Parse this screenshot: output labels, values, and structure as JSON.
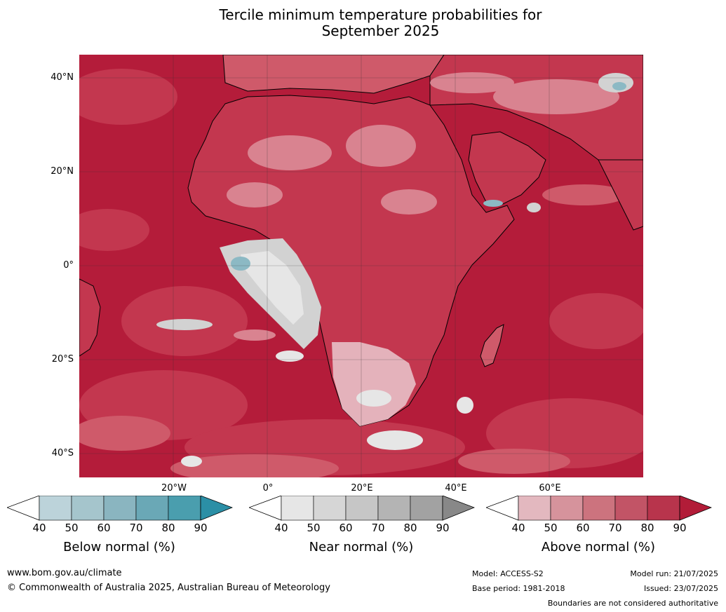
{
  "title": {
    "line1": "Tercile minimum temperature probabilities for",
    "line2": "September 2025"
  },
  "map": {
    "lat_labels": [
      "40°N",
      "20°N",
      "0°",
      "20°S",
      "40°S"
    ],
    "lon_labels": [
      "20°W",
      "0°",
      "20°E",
      "40°E",
      "60°E"
    ],
    "colors": {
      "ocean_high": "#b41c3a",
      "above_80": "#c3374f",
      "above_70": "#cf5a6a",
      "above_60": "#d98390",
      "above_50": "#e4b2bb",
      "near": "#d2d2d2",
      "near_light": "#e6e6e6",
      "below": "#8cb9c4"
    }
  },
  "colorbars": [
    {
      "label": "Below normal (%)",
      "ticks": [
        "40",
        "50",
        "60",
        "70",
        "80",
        "90"
      ],
      "colors": [
        "#ffffff",
        "#bcd3da",
        "#a5c5cc",
        "#8ab5c0",
        "#6aa8b6",
        "#4a9eae",
        "#2b8fa6"
      ]
    },
    {
      "label": "Near normal (%)",
      "ticks": [
        "40",
        "50",
        "60",
        "70",
        "80",
        "90"
      ],
      "colors": [
        "#ffffff",
        "#e6e6e6",
        "#d6d6d6",
        "#c6c6c6",
        "#b4b4b4",
        "#a2a2a2",
        "#888888"
      ]
    },
    {
      "label": "Above normal (%)",
      "ticks": [
        "40",
        "50",
        "60",
        "70",
        "80",
        "90"
      ],
      "colors": [
        "#ffffff",
        "#e3b8bf",
        "#d6939c",
        "#cc737e",
        "#c25466",
        "#b8344c",
        "#b21c38"
      ]
    }
  ],
  "footer": {
    "website": "www.bom.gov.au/climate",
    "copyright": "© Commonwealth of Australia 2025, Australian Bureau of Meteorology",
    "model": "Model: ACCESS-S2",
    "base_period": "Base period: 1981-2018",
    "model_run": "Model run: 21/07/2025",
    "issued": "Issued: 23/07/2025",
    "disclaimer": "Boundaries are not considered authoritative"
  }
}
